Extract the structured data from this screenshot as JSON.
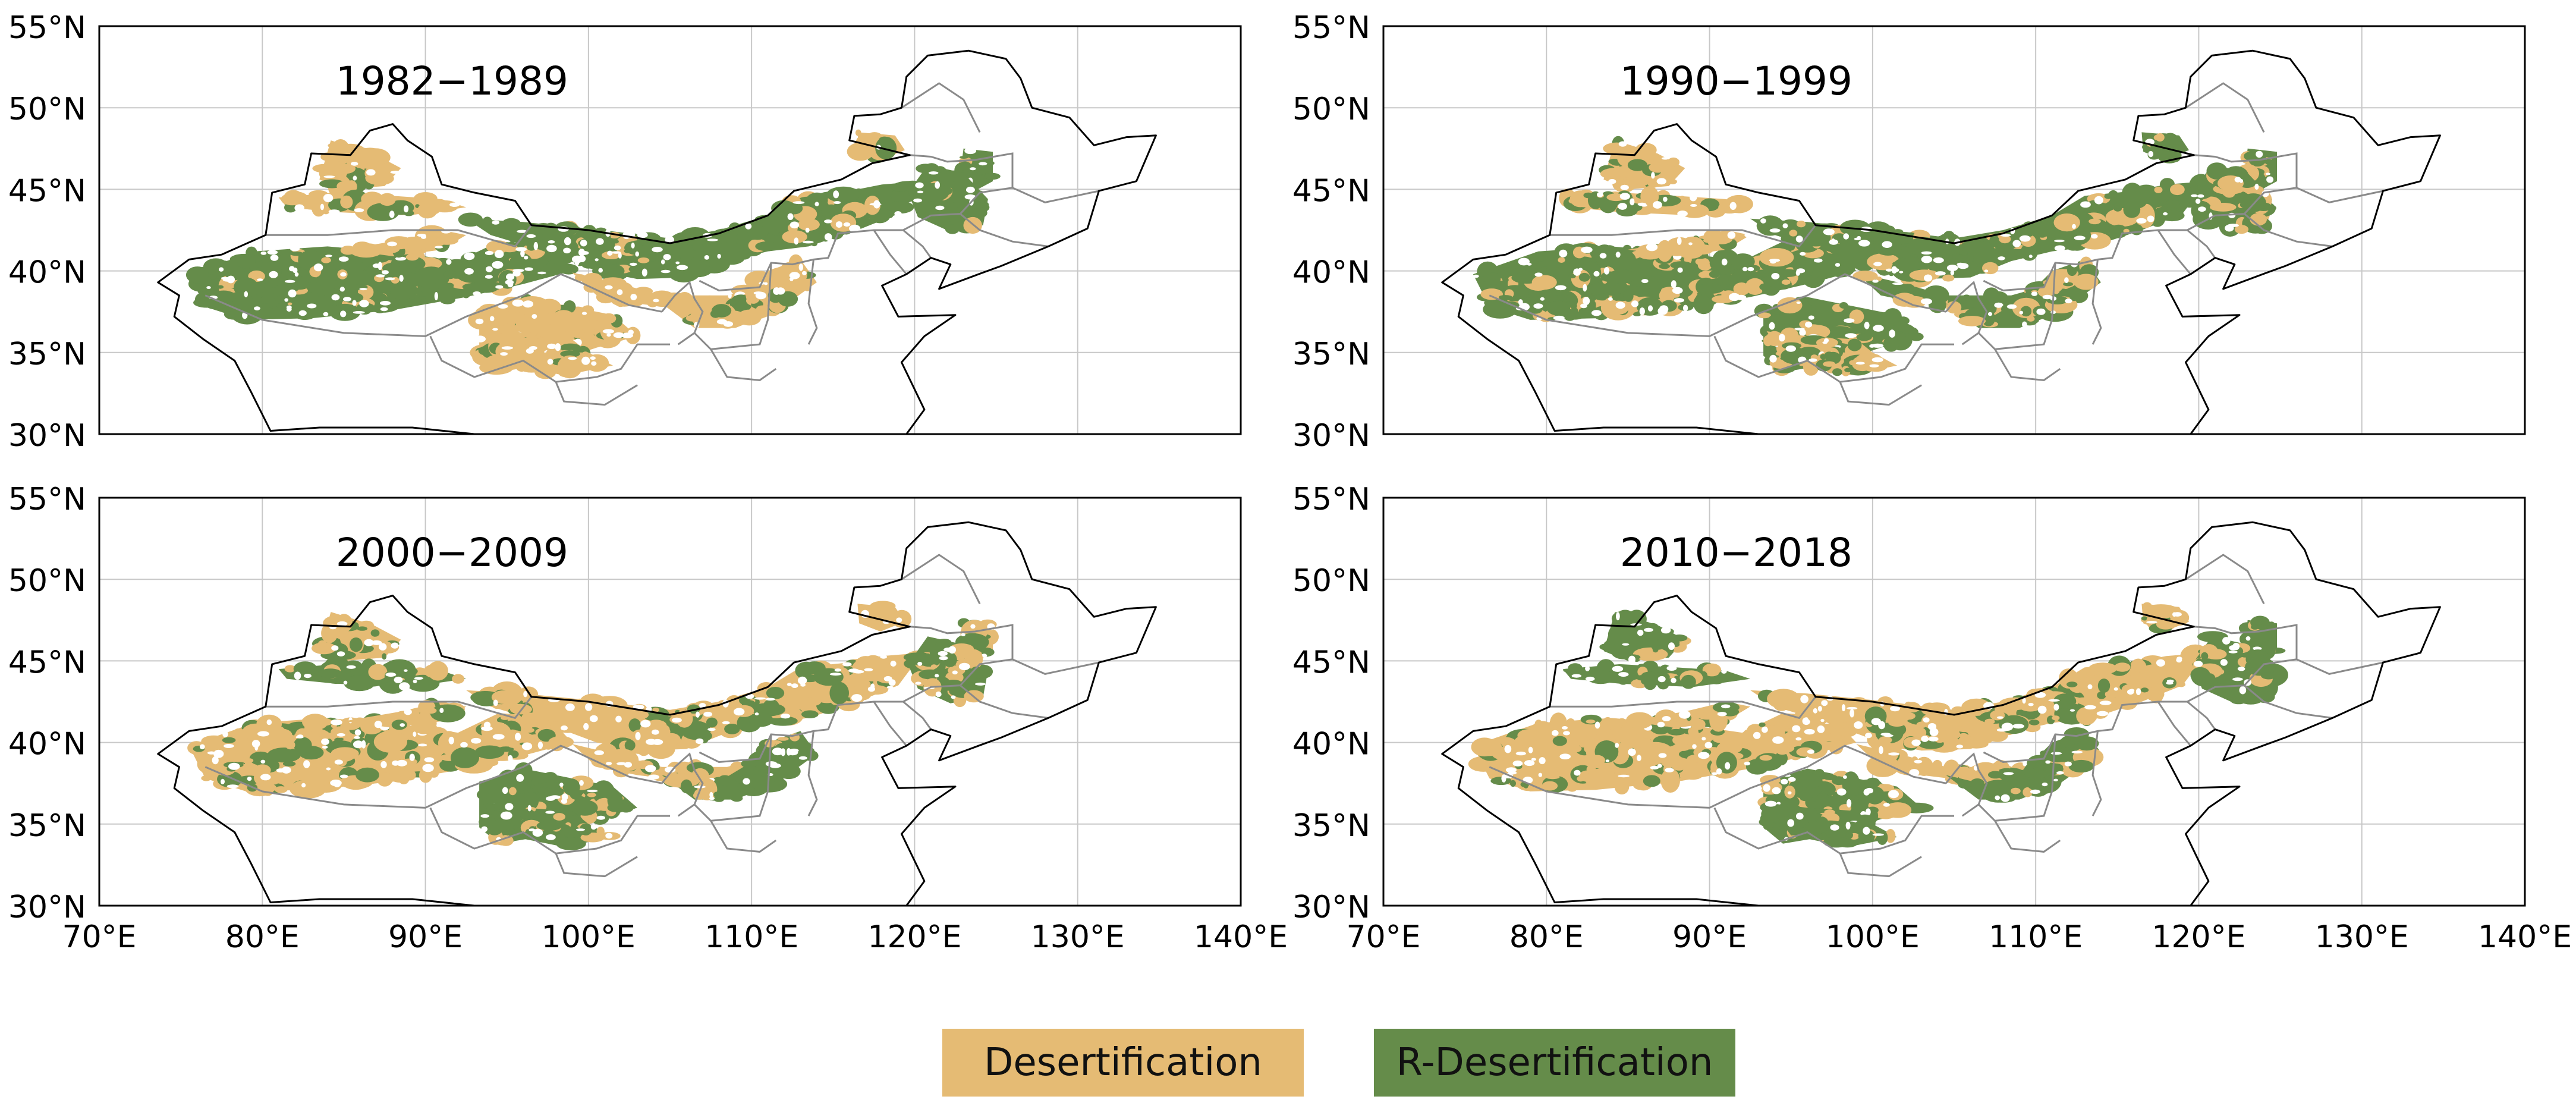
{
  "figure": {
    "panels": [
      {
        "title": "1982−1989",
        "show_x_ticks": false
      },
      {
        "title": "1990−1999",
        "show_x_ticks": false
      },
      {
        "title": "2000−2009",
        "show_x_ticks": true
      },
      {
        "title": "2010−2018",
        "show_x_ticks": true
      }
    ],
    "axes": {
      "lon_range": [
        70,
        140
      ],
      "lat_range": [
        30,
        55
      ],
      "lon_ticks": [
        70,
        80,
        90,
        100,
        110,
        120,
        130,
        140
      ],
      "lat_ticks": [
        30,
        35,
        40,
        45,
        50,
        55
      ],
      "lon_tick_labels": [
        "70°E",
        "80°E",
        "90°E",
        "100°E",
        "110°E",
        "120°E",
        "130°E",
        "140°E"
      ],
      "lat_tick_labels": [
        "30°N",
        "35°N",
        "40°N",
        "45°N",
        "50°N",
        "55°N"
      ],
      "gridlines": true
    },
    "legend": {
      "placement": "bottom-center",
      "items": [
        {
          "label": "Desertification",
          "color": "#e5bb74"
        },
        {
          "label": "R-Desertification",
          "color": "#658c4a"
        }
      ]
    },
    "colors": {
      "desertification": "#e5bb74",
      "r_desertification": "#658c4a",
      "boundary": "#000000",
      "province_boundary": "#8a8a8a",
      "grid": "#c8c8c8"
    }
  }
}
